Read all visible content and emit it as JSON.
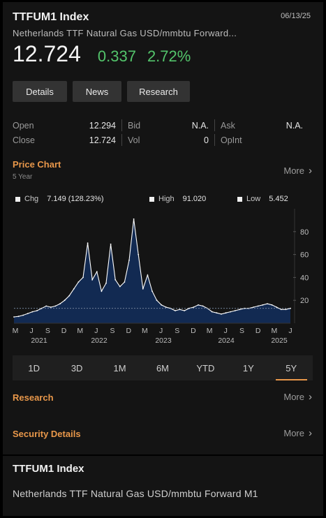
{
  "header": {
    "ticker": "TTFUM1 Index",
    "date": "06/13/25",
    "description": "Netherlands TTF Natural Gas USD/mmbtu Forward...",
    "price": "12.724",
    "change": "0.337",
    "change_pct": "2.72%",
    "change_color": "#53c46b"
  },
  "buttons": {
    "details": "Details",
    "news": "News",
    "research": "Research"
  },
  "quote": {
    "open_label": "Open",
    "open": "12.294",
    "close_label": "Close",
    "close": "12.724",
    "bid_label": "Bid",
    "bid": "N.A.",
    "vol_label": "Vol",
    "vol": "0",
    "ask_label": "Ask",
    "ask": "N.A.",
    "openint_label": "OpInt",
    "openint": ""
  },
  "price_chart": {
    "title": "Price Chart",
    "subtitle": "5 Year",
    "more": "More",
    "legend": {
      "chg_label": "Chg",
      "chg_value": "7.149 (128.23%)",
      "high_label": "High",
      "high_value": "91.020",
      "low_label": "Low",
      "low_value": "5.452"
    }
  },
  "ranges": [
    "1D",
    "3D",
    "1M",
    "6M",
    "YTD",
    "1Y",
    "5Y"
  ],
  "active_range": "5Y",
  "research": {
    "title": "Research",
    "more": "More"
  },
  "security": {
    "title": "Security Details",
    "more": "More"
  },
  "bottom": {
    "title": "TTFUM1 Index",
    "description": "Netherlands TTF Natural Gas USD/mmbtu Forward M1"
  },
  "colors": {
    "accent": "#e8974a",
    "positive": "#53c46b",
    "area_fill": "#122a52",
    "line": "#ffffff"
  },
  "chart_data": {
    "type": "area",
    "ylim": [
      0,
      100
    ],
    "yticks": [
      20,
      40,
      60,
      80
    ],
    "x_month_labels": [
      "M",
      "J",
      "S",
      "D",
      "M",
      "J",
      "S",
      "D",
      "M",
      "J",
      "S",
      "D",
      "M",
      "J",
      "S",
      "D",
      "M",
      "J"
    ],
    "x_year_labels": [
      "2021",
      "2022",
      "2023",
      "2024",
      "2025"
    ],
    "series": [
      {
        "x": [
          "2020-06",
          "2020-07",
          "2020-08",
          "2020-09",
          "2020-10",
          "2020-11",
          "2020-12",
          "2021-01",
          "2021-02",
          "2021-03",
          "2021-04",
          "2021-05",
          "2021-06",
          "2021-07",
          "2021-08",
          "2021-09",
          "2021-10",
          "2021-11",
          "2021-12",
          "2022-01",
          "2022-02",
          "2022-03",
          "2022-04",
          "2022-05",
          "2022-06",
          "2022-07",
          "2022-08",
          "2022-09",
          "2022-10",
          "2022-11",
          "2022-12",
          "2023-01",
          "2023-02",
          "2023-03",
          "2023-04",
          "2023-05",
          "2023-06",
          "2023-07",
          "2023-08",
          "2023-09",
          "2023-10",
          "2023-11",
          "2023-12",
          "2024-01",
          "2024-02",
          "2024-03",
          "2024-04",
          "2024-05",
          "2024-06",
          "2024-07",
          "2024-08",
          "2024-09",
          "2024-10",
          "2024-11",
          "2024-12",
          "2025-01",
          "2025-02",
          "2025-03",
          "2025-04",
          "2025-05",
          "2025-06"
        ],
        "values": [
          5.5,
          6,
          7,
          8.5,
          10,
          11,
          13,
          15,
          14,
          15,
          17,
          20,
          24,
          30,
          36,
          40,
          70,
          38,
          45,
          28,
          35,
          69,
          38,
          32,
          36,
          55,
          91,
          60,
          30,
          42,
          28,
          20,
          16,
          14,
          13,
          11,
          12,
          11,
          13,
          14,
          16,
          15,
          13,
          10,
          9,
          8,
          9,
          10,
          11,
          12,
          13,
          13,
          14,
          15,
          16,
          17,
          16,
          14,
          12,
          12,
          13
        ]
      }
    ]
  }
}
